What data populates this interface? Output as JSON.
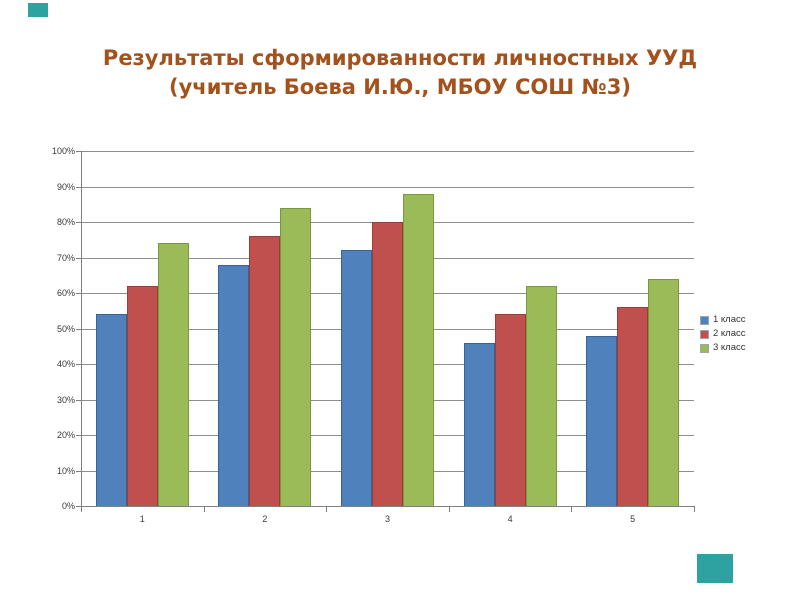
{
  "slide": {
    "title_line1": "Результаты сформированности личностных УУД",
    "title_line2": "(учитель Боева И.Ю., МБОУ СОШ №3)",
    "title_color": "#A4521D",
    "decor_color": "#2EA1A1"
  },
  "chart_data": {
    "type": "bar",
    "title": "",
    "xlabel": "",
    "ylabel": "",
    "categories": [
      "1",
      "2",
      "3",
      "4",
      "5"
    ],
    "series": [
      {
        "name": "1 класс",
        "color": "#4F81BD",
        "border": "#3A6294",
        "values": [
          54,
          68,
          72,
          46,
          48
        ]
      },
      {
        "name": "2 класс",
        "color": "#C0504D",
        "border": "#963F3C",
        "values": [
          62,
          76,
          80,
          54,
          56
        ]
      },
      {
        "name": "3 класс",
        "color": "#9BBB59",
        "border": "#79983F",
        "values": [
          74,
          84,
          88,
          62,
          64
        ]
      }
    ],
    "ylim": [
      0,
      100
    ],
    "ytick_step": 10,
    "ytick_labels": [
      "0%",
      "10%",
      "20%",
      "30%",
      "40%",
      "50%",
      "60%",
      "70%",
      "80%",
      "90%",
      "100%"
    ],
    "grid": true,
    "legend_position": "right"
  },
  "chart_style": {
    "gridline_color": "#8E8E8E",
    "axis_color": "#808080",
    "tick_label_color": "#3A3A3A"
  }
}
